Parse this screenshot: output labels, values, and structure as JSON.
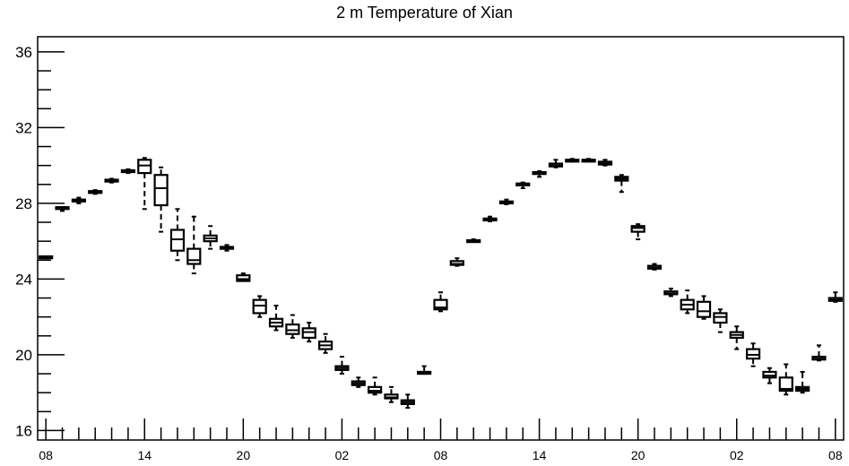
{
  "chart_data": {
    "type": "boxplot",
    "title": "2 m Temperature of Xian",
    "xlabel": "",
    "ylabel": "",
    "ylim": [
      15.5,
      36.8
    ],
    "y_ticks": [
      16,
      20,
      24,
      28,
      32,
      36
    ],
    "x_tick_labels": [
      "08",
      "14",
      "20",
      "02",
      "08",
      "14",
      "20",
      "02",
      "08"
    ],
    "grid": false,
    "series": [
      {
        "x": 0,
        "min": 25.1,
        "q1": 25.1,
        "median": 25.15,
        "q3": 25.2,
        "max": 25.2
      },
      {
        "x": 1,
        "min": 27.6,
        "q1": 27.7,
        "median": 27.75,
        "q3": 27.8,
        "max": 27.8
      },
      {
        "x": 2,
        "min": 28.0,
        "q1": 28.1,
        "median": 28.1,
        "q3": 28.2,
        "max": 28.3
      },
      {
        "x": 3,
        "min": 28.5,
        "q1": 28.55,
        "median": 28.6,
        "q3": 28.65,
        "max": 28.7
      },
      {
        "x": 4,
        "min": 29.1,
        "q1": 29.15,
        "median": 29.2,
        "q3": 29.25,
        "max": 29.3
      },
      {
        "x": 5,
        "min": 29.6,
        "q1": 29.65,
        "median": 29.7,
        "q3": 29.75,
        "max": 29.8
      },
      {
        "x": 6,
        "min": 27.7,
        "q1": 29.6,
        "median": 30.0,
        "q3": 30.3,
        "max": 30.4
      },
      {
        "x": 7,
        "min": 26.5,
        "q1": 27.9,
        "median": 28.8,
        "q3": 29.5,
        "max": 29.9
      },
      {
        "x": 8,
        "min": 25.0,
        "q1": 25.5,
        "median": 26.1,
        "q3": 26.6,
        "max": 27.7
      },
      {
        "x": 9,
        "min": 24.3,
        "q1": 24.8,
        "median": 25.0,
        "q3": 25.6,
        "max": 27.3
      },
      {
        "x": 10,
        "min": 25.6,
        "q1": 26.0,
        "median": 26.15,
        "q3": 26.3,
        "max": 26.8
      },
      {
        "x": 11,
        "min": 25.5,
        "q1": 25.6,
        "median": 25.65,
        "q3": 25.7,
        "max": 25.8
      },
      {
        "x": 12,
        "min": 23.9,
        "q1": 23.9,
        "median": 24.0,
        "q3": 24.2,
        "max": 24.3
      },
      {
        "x": 13,
        "min": 22.0,
        "q1": 22.2,
        "median": 22.6,
        "q3": 22.9,
        "max": 23.1
      },
      {
        "x": 14,
        "min": 21.3,
        "q1": 21.5,
        "median": 21.7,
        "q3": 21.9,
        "max": 22.6
      },
      {
        "x": 15,
        "min": 20.9,
        "q1": 21.1,
        "median": 21.3,
        "q3": 21.6,
        "max": 22.1
      },
      {
        "x": 16,
        "min": 20.7,
        "q1": 20.9,
        "median": 21.2,
        "q3": 21.4,
        "max": 21.7
      },
      {
        "x": 17,
        "min": 20.1,
        "q1": 20.3,
        "median": 20.5,
        "q3": 20.7,
        "max": 21.1
      },
      {
        "x": 18,
        "min": 19.0,
        "q1": 19.2,
        "median": 19.3,
        "q3": 19.4,
        "max": 19.9
      },
      {
        "x": 19,
        "min": 18.3,
        "q1": 18.4,
        "median": 18.5,
        "q3": 18.6,
        "max": 18.8
      },
      {
        "x": 20,
        "min": 17.9,
        "q1": 18.0,
        "median": 18.1,
        "q3": 18.3,
        "max": 18.8
      },
      {
        "x": 21,
        "min": 17.5,
        "q1": 17.7,
        "median": 17.75,
        "q3": 17.9,
        "max": 18.3
      },
      {
        "x": 22,
        "min": 17.2,
        "q1": 17.4,
        "median": 17.5,
        "q3": 17.6,
        "max": 17.9
      },
      {
        "x": 23,
        "min": 19.0,
        "q1": 19.0,
        "median": 19.0,
        "q3": 19.1,
        "max": 19.4
      },
      {
        "x": 24,
        "min": 22.3,
        "q1": 22.4,
        "median": 22.5,
        "q3": 22.9,
        "max": 23.3
      },
      {
        "x": 25,
        "min": 24.7,
        "q1": 24.75,
        "median": 24.8,
        "q3": 24.95,
        "max": 25.1
      },
      {
        "x": 26,
        "min": 26.0,
        "q1": 26.0,
        "median": 26.0,
        "q3": 26.05,
        "max": 26.1
      },
      {
        "x": 27,
        "min": 27.05,
        "q1": 27.1,
        "median": 27.15,
        "q3": 27.2,
        "max": 27.3
      },
      {
        "x": 28,
        "min": 27.95,
        "q1": 28.0,
        "median": 28.05,
        "q3": 28.1,
        "max": 28.2
      },
      {
        "x": 29,
        "min": 28.8,
        "q1": 28.95,
        "median": 29.0,
        "q3": 29.05,
        "max": 29.1
      },
      {
        "x": 30,
        "min": 29.4,
        "q1": 29.55,
        "median": 29.6,
        "q3": 29.65,
        "max": 29.7
      },
      {
        "x": 31,
        "min": 29.9,
        "q1": 29.95,
        "median": 30.0,
        "q3": 30.1,
        "max": 30.3
      },
      {
        "x": 32,
        "min": 30.2,
        "q1": 30.25,
        "median": 30.3,
        "q3": 30.3,
        "max": 30.35
      },
      {
        "x": 33,
        "min": 30.25,
        "q1": 30.3,
        "median": 30.3,
        "q3": 30.3,
        "max": 30.35
      },
      {
        "x": 34,
        "min": 30.0,
        "q1": 30.05,
        "median": 30.1,
        "q3": 30.2,
        "max": 30.3
      },
      {
        "x": 35,
        "min": 28.6,
        "q1": 29.2,
        "median": 29.3,
        "q3": 29.4,
        "max": 29.5
      },
      {
        "x": 36,
        "min": 26.1,
        "q1": 26.5,
        "median": 26.7,
        "q3": 26.8,
        "max": 26.9
      },
      {
        "x": 37,
        "min": 24.5,
        "q1": 24.55,
        "median": 24.6,
        "q3": 24.7,
        "max": 24.8
      },
      {
        "x": 38,
        "min": 23.1,
        "q1": 23.2,
        "median": 23.25,
        "q3": 23.35,
        "max": 23.5
      },
      {
        "x": 39,
        "min": 22.2,
        "q1": 22.4,
        "median": 22.65,
        "q3": 22.9,
        "max": 23.4
      },
      {
        "x": 40,
        "min": 21.9,
        "q1": 22.0,
        "median": 22.3,
        "q3": 22.8,
        "max": 23.1
      },
      {
        "x": 41,
        "min": 21.2,
        "q1": 21.7,
        "median": 22.0,
        "q3": 22.2,
        "max": 22.4
      },
      {
        "x": 42,
        "min": 20.3,
        "q1": 20.9,
        "median": 21.05,
        "q3": 21.2,
        "max": 21.5
      },
      {
        "x": 43,
        "min": 19.4,
        "q1": 19.8,
        "median": 20.0,
        "q3": 20.3,
        "max": 20.6
      },
      {
        "x": 44,
        "min": 18.5,
        "q1": 18.8,
        "median": 18.9,
        "q3": 19.1,
        "max": 19.3
      },
      {
        "x": 45,
        "min": 17.9,
        "q1": 18.1,
        "median": 18.2,
        "q3": 18.8,
        "max": 19.5
      },
      {
        "x": 46,
        "min": 18.0,
        "q1": 18.1,
        "median": 18.2,
        "q3": 18.3,
        "max": 19.1
      },
      {
        "x": 47,
        "min": 19.7,
        "q1": 19.75,
        "median": 19.8,
        "q3": 19.9,
        "max": 20.5
      },
      {
        "x": 48,
        "min": 22.8,
        "q1": 22.85,
        "median": 22.9,
        "q3": 23.0,
        "max": 23.3
      }
    ]
  }
}
